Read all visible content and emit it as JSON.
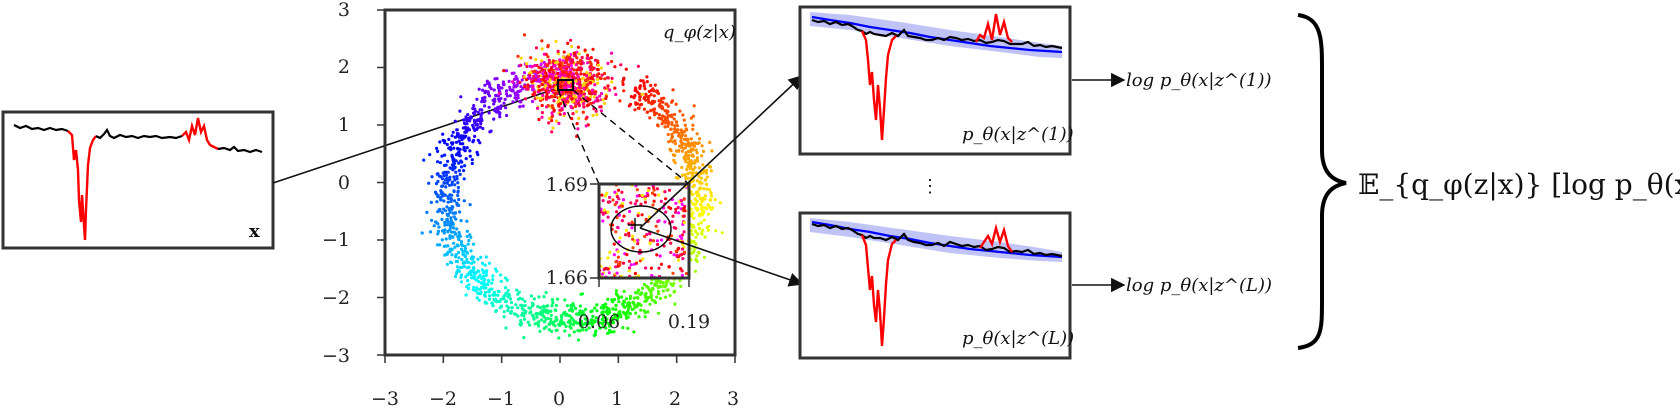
{
  "colors": {
    "frame": "#333333",
    "signal_normal": "#000000",
    "signal_anomaly": "#ff0000",
    "reconstruction_mean": "#0000ff",
    "reconstruction_band": "#b9bdf5"
  },
  "input_panel": {
    "label": "x"
  },
  "latent_plot": {
    "label": "q_φ(z|x)",
    "x_ticks": [
      "−3",
      "−2",
      "−1",
      "0",
      "1",
      "2",
      "3"
    ],
    "y_ticks": [
      "3",
      "2",
      "1",
      "0",
      "−1",
      "−2",
      "−3"
    ],
    "xlim": [
      -3,
      3
    ],
    "ylim": [
      -3,
      3
    ],
    "inset_x_ticks": [
      "0.06",
      "0.19"
    ],
    "inset_y_ticks": [
      "1.69",
      "1.66"
    ]
  },
  "reconstruction_panels": [
    {
      "label": "p_θ(x|z^(1))",
      "log_label": "log p_θ(x|z^(1))"
    },
    {
      "label": "p_θ(x|z^(L))",
      "log_label": "log p_θ(x|z^(L))"
    }
  ],
  "ellipsis": "⋮",
  "expectation": "𝔼_{q_φ(z|x)} [log p_θ(x|z)]"
}
